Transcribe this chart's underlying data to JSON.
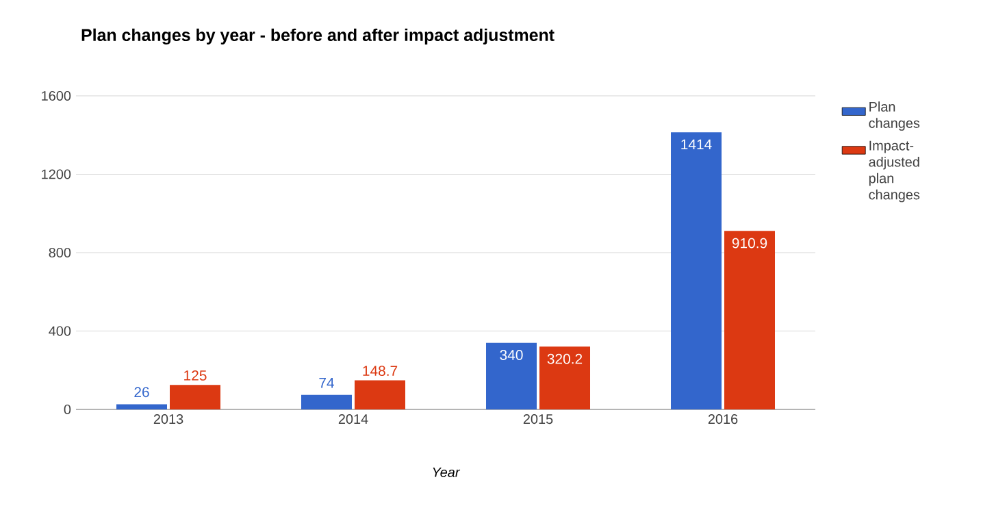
{
  "chart_data": {
    "type": "bar",
    "title": "Plan changes by year - before and after impact adjustment",
    "xlabel": "Year",
    "categories": [
      "2013",
      "2014",
      "2015",
      "2016"
    ],
    "series": [
      {
        "name": "Plan changes",
        "color": "#3366cc",
        "values": [
          26,
          74,
          340,
          1414
        ]
      },
      {
        "name": "Impact-adjusted plan changes",
        "color": "#dc3912",
        "values": [
          125,
          148.7,
          320.2,
          910.9
        ]
      }
    ],
    "ylim": [
      0,
      1600
    ],
    "yticks": [
      0,
      400,
      800,
      1200,
      1600
    ],
    "grid": "y",
    "legend": "right",
    "data_labels": true
  }
}
